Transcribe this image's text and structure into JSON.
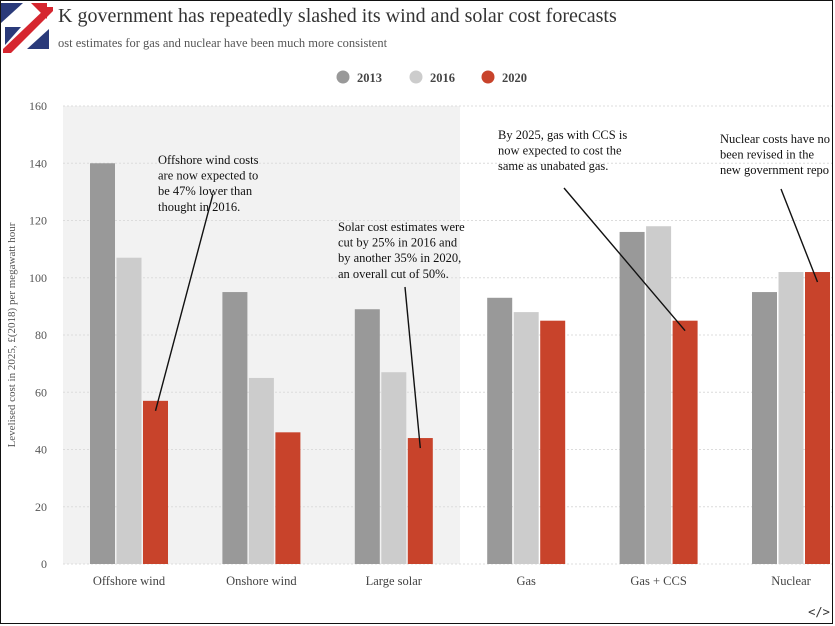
{
  "header": {
    "title": "K government has repeatedly slashed its wind and solar cost forecasts",
    "subtitle": "ost estimates for gas and nuclear have been much more consistent"
  },
  "logo": {
    "icon": "uk-flag-logo-icon",
    "colors": {
      "red": "#d6262f",
      "blue": "#2a3a7a"
    }
  },
  "embed_button": {
    "icon": "code-embed-icon",
    "label": "</>"
  },
  "chart_data": {
    "type": "bar",
    "ylabel": "Levelised cost in 2025, £(2018) per megawatt hour",
    "ylim": [
      0,
      160
    ],
    "yticks": [
      0,
      20,
      40,
      60,
      80,
      100,
      120,
      140,
      160
    ],
    "categories": [
      "Offshore wind",
      "Onshore wind",
      "Large solar",
      "Gas",
      "Gas + CCS",
      "Nuclear"
    ],
    "series": [
      {
        "name": "2013",
        "color": "#999999",
        "values": [
          140,
          95,
          89,
          93,
          116,
          95
        ]
      },
      {
        "name": "2016",
        "color": "#cccccc",
        "values": [
          107,
          65,
          67,
          88,
          118,
          102
        ]
      },
      {
        "name": "2020",
        "color": "#c8432b",
        "values": [
          57,
          46,
          44,
          85,
          85,
          102
        ]
      }
    ],
    "legend_position": "top-center",
    "grid": true,
    "shaded_background_categories": [
      "Offshore wind",
      "Onshore wind",
      "Large solar"
    ],
    "annotations": [
      {
        "lines": [
          "Offshore wind costs",
          "are now expected to",
          "be 47% lower than",
          "thought in 2016."
        ],
        "category": "Offshore wind",
        "series": "2020"
      },
      {
        "lines": [
          "Solar cost estimates were",
          "cut by 25% in 2016 and",
          "by another 35% in 2020,",
          "an overall cut of 50%."
        ],
        "category": "Large solar",
        "series": "2020"
      },
      {
        "lines": [
          "By 2025, gas with CCS is",
          "now expected to cost the",
          "same as unabated gas."
        ],
        "category": "Gas + CCS",
        "series": "2020"
      },
      {
        "lines": [
          "Nuclear costs have no",
          "been revised in the",
          "new government repo"
        ],
        "category": "Nuclear",
        "series": "2020"
      }
    ]
  }
}
